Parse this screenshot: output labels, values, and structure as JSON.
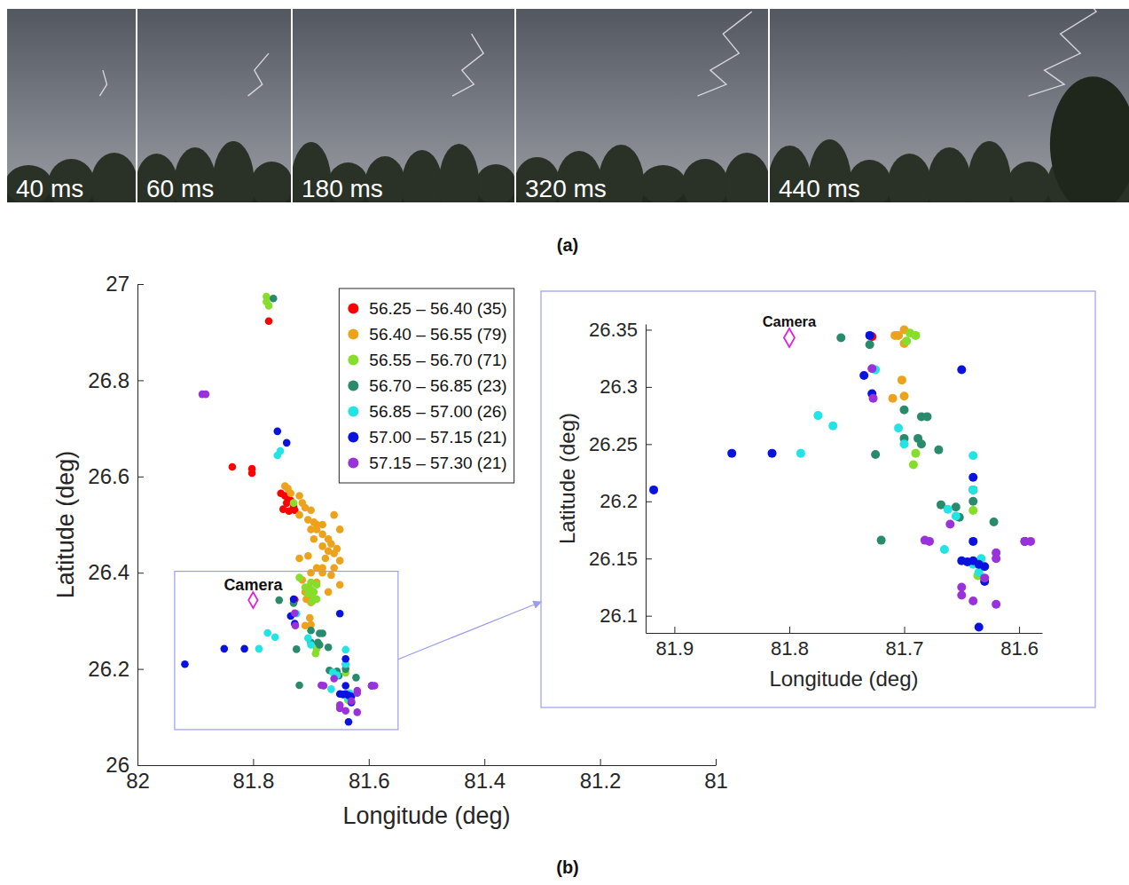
{
  "panel_labels": [
    "(a)",
    "(b)"
  ],
  "photo_frames": [
    "40 ms",
    "60 ms",
    "180 ms",
    "320 ms",
    "440 ms"
  ],
  "chart_data": [
    {
      "type": "scatter",
      "xlabel": "Longitude (deg)",
      "ylabel": "Latitude (deg)",
      "xlim": [
        82,
        81
      ],
      "ylim": [
        26,
        27
      ],
      "xticks": [
        82,
        81.8,
        81.6,
        81.4,
        81.2,
        81
      ],
      "yticks": [
        26,
        26.2,
        26.4,
        26.6,
        26.8,
        27
      ],
      "grid": false,
      "legend": "upper center",
      "marker": "circle",
      "annotations": [
        {
          "text": "Camera",
          "x": 81.8,
          "y": 26.343,
          "color": "#e020e0",
          "marker": "diamond"
        }
      ],
      "series": [
        {
          "name": "56.25 – 56.40 (35)",
          "color": "#ff0000",
          "x": [
            81.773,
            81.836,
            81.802,
            81.802,
            81.752,
            81.745,
            81.74,
            81.735,
            81.742,
            81.73,
            81.728,
            81.748,
            81.738,
            81.728
          ],
          "values": [
            26.923,
            26.62,
            26.616,
            26.607,
            26.565,
            26.56,
            26.556,
            26.55,
            26.545,
            26.537,
            26.53,
            26.532,
            26.528,
            26.344
          ]
        },
        {
          "name": "56.40 – 56.55 (79)",
          "color": "#eda21c",
          "x": [
            81.745,
            81.74,
            81.735,
            81.72,
            81.715,
            81.71,
            81.7,
            81.72,
            81.705,
            81.695,
            81.69,
            81.7,
            81.69,
            81.68,
            81.695,
            81.67,
            81.665,
            81.68,
            81.655,
            81.67,
            81.66,
            81.675,
            81.65,
            81.69,
            81.66,
            81.7,
            81.68,
            81.665,
            81.715,
            81.69,
            81.65,
            81.705,
            81.67,
            81.71,
            81.68,
            81.72,
            81.68,
            81.66,
            81.65,
            81.705,
            81.7,
            81.705,
            81.7,
            81.71,
            81.7,
            81.702,
            81.708
          ],
          "values": [
            26.58,
            26.575,
            26.565,
            26.56,
            26.545,
            26.535,
            26.53,
            26.52,
            26.51,
            26.505,
            26.5,
            26.49,
            26.49,
            26.48,
            26.47,
            26.47,
            26.46,
            26.455,
            26.45,
            26.445,
            26.44,
            26.43,
            26.425,
            26.41,
            26.41,
            26.4,
            26.4,
            26.395,
            26.385,
            26.38,
            26.375,
            26.37,
            26.36,
            26.36,
            26.41,
            26.43,
            26.5,
            26.52,
            26.49,
            26.435,
            26.35,
            26.345,
            26.338,
            26.29,
            26.292,
            26.306,
            26.345
          ]
        },
        {
          "name": "56.55 – 56.70 (71)",
          "color": "#86de2a",
          "x": [
            81.777,
            81.777,
            81.773,
            81.73,
            81.71,
            81.7,
            81.695,
            81.705,
            81.69,
            81.7,
            81.72,
            81.695,
            81.69,
            81.698,
            81.69,
            81.692,
            81.64,
            81.636
          ],
          "values": [
            26.974,
            26.963,
            26.955,
            26.545,
            26.37,
            26.365,
            26.36,
            26.356,
            26.375,
            26.38,
            26.39,
            26.347,
            26.345,
            26.34,
            26.242,
            26.232,
            26.192,
            26.135
          ]
        },
        {
          "name": "56.70 – 56.85 (23)",
          "color": "#2a8a6c",
          "x": [
            81.765,
            81.755,
            81.73,
            81.7,
            81.68,
            81.685,
            81.688,
            81.7,
            81.685,
            81.67,
            81.725,
            81.668,
            81.655,
            81.64,
            81.64,
            81.622,
            81.72,
            81.652
          ],
          "values": [
            26.97,
            26.343,
            26.337,
            26.28,
            26.274,
            26.274,
            26.255,
            26.255,
            26.25,
            26.245,
            26.241,
            26.197,
            26.195,
            26.21,
            26.2,
            26.182,
            26.166,
            26.186
          ]
        },
        {
          "name": "56.85 – 57.00 (26)",
          "color": "#22e4e4",
          "x": [
            81.753,
            81.758,
            81.775,
            81.762,
            81.79,
            81.705,
            81.7,
            81.64,
            81.64,
            81.662,
            81.655,
            81.665,
            81.64,
            81.635,
            81.633,
            81.725
          ],
          "values": [
            26.653,
            26.644,
            26.275,
            26.266,
            26.242,
            26.264,
            26.25,
            26.24,
            26.21,
            26.193,
            26.187,
            26.158,
            26.145,
            26.138,
            26.15,
            26.315
          ]
        },
        {
          "name": "57.00 – 57.15 (21)",
          "color": "#0a12e0",
          "x": [
            81.758,
            81.742,
            81.73,
            81.735,
            81.728,
            81.65,
            81.64,
            81.85,
            81.815,
            81.918,
            81.64,
            81.65,
            81.64,
            81.635,
            81.63,
            81.595,
            81.63,
            81.635,
            81.645
          ],
          "values": [
            26.694,
            26.67,
            26.345,
            26.31,
            26.294,
            26.315,
            26.221,
            26.242,
            26.242,
            26.21,
            26.165,
            26.148,
            26.148,
            26.145,
            26.143,
            26.165,
            26.13,
            26.09,
            26.147
          ]
        },
        {
          "name": "57.15 – 57.30 (21)",
          "color": "#9a32dc",
          "x": [
            81.888,
            81.882,
            81.728,
            81.727,
            81.66,
            81.682,
            81.62,
            81.62,
            81.59,
            81.595,
            81.65,
            81.65,
            81.64,
            81.62,
            81.63,
            81.678
          ],
          "values": [
            26.771,
            26.771,
            26.316,
            26.29,
            26.18,
            26.166,
            26.155,
            26.15,
            26.165,
            26.165,
            26.125,
            26.118,
            26.113,
            26.11,
            26.133,
            26.165
          ]
        }
      ]
    },
    {
      "type": "scatter",
      "xlabel": "Longitude (deg)",
      "ylabel": "Latitude (deg)",
      "xlim": [
        81.925,
        81.58
      ],
      "ylim": [
        26.085,
        26.355
      ],
      "xticks": [
        81.9,
        81.8,
        81.7,
        81.6
      ],
      "yticks": [
        26.1,
        26.15,
        26.2,
        26.25,
        26.3,
        26.35
      ],
      "grid": false,
      "marker": "circle",
      "annotations": [
        {
          "text": "Camera",
          "x": 81.8,
          "y": 26.343,
          "color": "#e020e0",
          "marker": "diamond"
        }
      ],
      "series": [
        {
          "name": "56.25 – 56.40 (35)",
          "color": "#ff0000",
          "x": [
            81.728
          ],
          "values": [
            26.344
          ]
        },
        {
          "name": "56.40 – 56.55 (79)",
          "color": "#eda21c",
          "x": [
            81.7,
            81.705,
            81.7,
            81.71,
            81.7,
            81.702,
            81.708
          ],
          "values": [
            26.35,
            26.345,
            26.338,
            26.29,
            26.292,
            26.306,
            26.345
          ]
        },
        {
          "name": "56.55 – 56.70 (71)",
          "color": "#86de2a",
          "x": [
            81.695,
            81.69,
            81.698,
            81.69,
            81.692,
            81.64,
            81.636
          ],
          "values": [
            26.347,
            26.345,
            26.34,
            26.242,
            26.232,
            26.192,
            26.135
          ]
        },
        {
          "name": "56.70 – 56.85 (23)",
          "color": "#2a8a6c",
          "x": [
            81.755,
            81.73,
            81.7,
            81.68,
            81.685,
            81.688,
            81.7,
            81.685,
            81.67,
            81.725,
            81.668,
            81.655,
            81.64,
            81.64,
            81.622,
            81.72,
            81.652
          ],
          "values": [
            26.343,
            26.337,
            26.28,
            26.274,
            26.274,
            26.255,
            26.255,
            26.25,
            26.245,
            26.241,
            26.197,
            26.195,
            26.21,
            26.2,
            26.182,
            26.166,
            26.186
          ]
        },
        {
          "name": "56.85 – 57.00 (26)",
          "color": "#22e4e4",
          "x": [
            81.775,
            81.762,
            81.79,
            81.705,
            81.7,
            81.64,
            81.64,
            81.662,
            81.655,
            81.665,
            81.64,
            81.635,
            81.633,
            81.725
          ],
          "values": [
            26.275,
            26.266,
            26.242,
            26.264,
            26.25,
            26.24,
            26.21,
            26.193,
            26.187,
            26.158,
            26.145,
            26.138,
            26.15,
            26.315
          ]
        },
        {
          "name": "57.00 – 57.15 (21)",
          "color": "#0a12e0",
          "x": [
            81.73,
            81.735,
            81.728,
            81.65,
            81.64,
            81.85,
            81.815,
            81.918,
            81.64,
            81.65,
            81.64,
            81.635,
            81.63,
            81.595,
            81.63,
            81.635,
            81.645
          ],
          "values": [
            26.345,
            26.31,
            26.294,
            26.315,
            26.221,
            26.242,
            26.242,
            26.21,
            26.165,
            26.148,
            26.148,
            26.145,
            26.143,
            26.165,
            26.13,
            26.09,
            26.147
          ]
        },
        {
          "name": "57.15 – 57.30 (21)",
          "color": "#9a32dc",
          "x": [
            81.728,
            81.727,
            81.66,
            81.682,
            81.62,
            81.62,
            81.59,
            81.595,
            81.65,
            81.65,
            81.64,
            81.62,
            81.63,
            81.678
          ],
          "values": [
            26.316,
            26.29,
            26.18,
            26.166,
            26.155,
            26.15,
            26.165,
            26.165,
            26.125,
            26.118,
            26.113,
            26.11,
            26.133,
            26.165
          ]
        }
      ]
    }
  ]
}
